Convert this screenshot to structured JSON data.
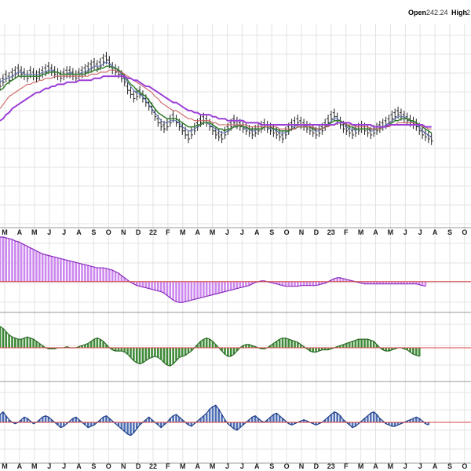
{
  "header": {
    "open_label": "Open",
    "open_value": "242.24",
    "high_label": "High",
    "high_value": "2"
  },
  "colors": {
    "grid": "#e3e3e3",
    "price_bars": "#222222",
    "ma_blue": "#5a6fb5",
    "ma_green": "#2f7d2a",
    "ma_red": "#c95757",
    "ma_purple": "#9b3fd6",
    "osc1_fill": "#cc88ee",
    "osc1_line": "#8a2bbd",
    "osc2_fill": "#3f8a38",
    "osc2_line": "#2b6a25",
    "osc3_fill": "#4e6fb5",
    "osc3_line": "#1f3f86",
    "zero_line": "#d84040"
  },
  "chart_data": [
    {
      "type": "line",
      "panel": "price",
      "x_ticks": [
        "M",
        "A",
        "M",
        "J",
        "J",
        "A",
        "S",
        "O",
        "N",
        "D",
        "22",
        "F",
        "M",
        "A",
        "M",
        "J",
        "J",
        "A",
        "S",
        "O",
        "N",
        "D",
        "23",
        "F",
        "M",
        "A",
        "M",
        "J",
        "J",
        "A",
        "S",
        "O"
      ],
      "x_range": [
        0,
        155
      ],
      "ylim": [
        0,
        100
      ],
      "series": [
        {
          "key": "price",
          "values": [
            70,
            72,
            74,
            73,
            75,
            76,
            77,
            76,
            75,
            74,
            76,
            75,
            74,
            75,
            76,
            77,
            78,
            77,
            76,
            75,
            74,
            75,
            76,
            76,
            75,
            74,
            75,
            76,
            77,
            78,
            79,
            80,
            79,
            80,
            82,
            83,
            81,
            78,
            77,
            76,
            74,
            72,
            68,
            66,
            64,
            65,
            66,
            64,
            62,
            60,
            58,
            55,
            52,
            50,
            49,
            50,
            52,
            54,
            52,
            50,
            48,
            46,
            44,
            46,
            48,
            50,
            52,
            53,
            52,
            50,
            48,
            46,
            45,
            44,
            46,
            48,
            50,
            52,
            51,
            50,
            49,
            48,
            47,
            46,
            47,
            48,
            49,
            50,
            49,
            48,
            47,
            46,
            45,
            44,
            46,
            48,
            50,
            51,
            52,
            51,
            50,
            49,
            48,
            47,
            46,
            47,
            48,
            50,
            52,
            54,
            55,
            53,
            51,
            49,
            48,
            47,
            46,
            47,
            48,
            49,
            48,
            47,
            46,
            47,
            48,
            49,
            50,
            51,
            52,
            54,
            55,
            56,
            55,
            54,
            53,
            52,
            51,
            50,
            48,
            46,
            45,
            44,
            43
          ]
        },
        {
          "key": "ma_blue",
          "values": [
            71,
            72,
            73,
            73,
            74,
            75,
            76,
            76,
            75,
            75,
            75,
            75,
            75,
            75,
            76,
            76,
            77,
            77,
            76,
            76,
            75,
            75,
            75,
            76,
            75,
            75,
            75,
            76,
            76,
            77,
            78,
            79,
            79,
            79,
            80,
            81,
            80,
            79,
            78,
            77,
            75,
            73,
            71,
            69,
            67,
            66,
            65,
            64,
            62,
            60,
            58,
            56,
            54,
            52,
            51,
            51,
            52,
            52,
            52,
            51,
            49,
            48,
            47,
            47,
            48,
            49,
            50,
            51,
            51,
            50,
            49,
            48,
            47,
            46,
            46,
            47,
            48,
            49,
            50,
            50,
            49,
            48,
            48,
            47,
            47,
            48,
            48,
            49,
            49,
            48,
            48,
            47,
            46,
            46,
            46,
            47,
            48,
            49,
            50,
            50,
            50,
            49,
            49,
            48,
            47,
            47,
            48,
            49,
            50,
            52,
            53,
            53,
            52,
            51,
            49,
            48,
            48,
            47,
            48,
            48,
            48,
            48,
            47,
            47,
            48,
            48,
            49,
            50,
            51,
            52,
            53,
            54,
            54,
            54,
            53,
            52,
            51,
            50,
            49,
            47,
            46,
            45,
            44
          ]
        },
        {
          "key": "ma_green",
          "values": [
            67,
            68,
            70,
            71,
            72,
            73,
            74,
            74,
            74,
            74,
            74,
            74,
            74,
            74,
            75,
            75,
            76,
            76,
            76,
            76,
            75,
            75,
            75,
            75,
            75,
            75,
            75,
            75,
            75,
            76,
            76,
            77,
            77,
            78,
            78,
            79,
            79,
            78,
            78,
            77,
            76,
            74,
            72,
            70,
            69,
            67,
            66,
            65,
            64,
            62,
            60,
            58,
            56,
            55,
            54,
            53,
            53,
            53,
            53,
            52,
            51,
            50,
            49,
            49,
            49,
            50,
            50,
            51,
            51,
            51,
            50,
            49,
            48,
            48,
            47,
            48,
            48,
            49,
            49,
            50,
            49,
            49,
            48,
            48,
            48,
            48,
            48,
            49,
            49,
            49,
            48,
            48,
            47,
            47,
            47,
            47,
            48,
            48,
            49,
            49,
            49,
            49,
            49,
            48,
            48,
            48,
            48,
            49,
            50,
            51,
            52,
            52,
            52,
            51,
            50,
            49,
            49,
            48,
            48,
            48,
            48,
            48,
            48,
            48,
            48,
            48,
            49,
            49,
            50,
            51,
            52,
            52,
            53,
            53,
            53,
            52,
            52,
            51,
            50,
            49,
            48,
            47,
            46
          ]
        },
        {
          "key": "ma_red",
          "values": [
            58,
            60,
            62,
            64,
            65,
            66,
            67,
            68,
            69,
            70,
            70,
            71,
            71,
            72,
            72,
            73,
            73,
            73,
            74,
            74,
            74,
            74,
            74,
            74,
            74,
            74,
            74,
            74,
            74,
            74,
            75,
            75,
            75,
            76,
            76,
            76,
            77,
            77,
            77,
            76,
            76,
            75,
            74,
            73,
            72,
            71,
            70,
            69,
            68,
            67,
            66,
            64,
            63,
            61,
            60,
            59,
            58,
            57,
            57,
            56,
            55,
            54,
            53,
            53,
            52,
            52,
            52,
            52,
            52,
            52,
            51,
            51,
            50,
            50,
            50,
            50,
            50,
            50,
            50,
            50,
            50,
            50,
            49,
            49,
            49,
            49,
            49,
            49,
            49,
            49,
            49,
            49,
            48,
            48,
            48,
            48,
            48,
            48,
            49,
            49,
            49,
            49,
            49,
            49,
            48,
            48,
            48,
            49,
            49,
            50,
            50,
            51,
            51,
            51,
            50,
            50,
            50,
            49,
            49,
            49,
            49,
            49,
            48,
            48,
            48,
            48,
            49,
            49,
            49,
            50,
            50,
            51,
            51,
            51,
            51,
            51,
            51,
            50,
            50,
            49,
            49,
            48,
            48
          ]
        },
        {
          "key": "ma_purple",
          "values": [
            52,
            53,
            55,
            56,
            58,
            59,
            60,
            61,
            62,
            63,
            64,
            65,
            66,
            66,
            67,
            68,
            68,
            69,
            69,
            70,
            70,
            70,
            71,
            71,
            71,
            71,
            72,
            72,
            72,
            72,
            72,
            73,
            73,
            73,
            74,
            74,
            74,
            74,
            74,
            74,
            74,
            74,
            73,
            73,
            72,
            72,
            71,
            70,
            69,
            69,
            68,
            67,
            66,
            65,
            64,
            63,
            62,
            61,
            61,
            60,
            59,
            58,
            57,
            57,
            56,
            56,
            55,
            55,
            55,
            55,
            54,
            54,
            53,
            53,
            53,
            52,
            52,
            52,
            52,
            52,
            52,
            51,
            51,
            51,
            51,
            51,
            50,
            50,
            50,
            50,
            50,
            50,
            50,
            50,
            50,
            50,
            50,
            50,
            50,
            50,
            50,
            50,
            50,
            50,
            50,
            50,
            50,
            50,
            50,
            50,
            50,
            51,
            51,
            51,
            51,
            51,
            50,
            50,
            50,
            50,
            50,
            50,
            50,
            49,
            49,
            49,
            49,
            49,
            50,
            50,
            50,
            50,
            50,
            50,
            50,
            50,
            50,
            50,
            50,
            50,
            49,
            49,
            49
          ]
        }
      ]
    },
    {
      "type": "area",
      "panel": "oscillator-1",
      "ylim": [
        -40,
        60
      ],
      "values": [
        58,
        58,
        57,
        56,
        55,
        53,
        52,
        50,
        48,
        46,
        44,
        42,
        40,
        38,
        36,
        35,
        34,
        33,
        32,
        31,
        30,
        29,
        28,
        27,
        26,
        25,
        24,
        23,
        22,
        21,
        20,
        19,
        18,
        18,
        18,
        17,
        16,
        15,
        13,
        11,
        8,
        5,
        2,
        -1,
        -3,
        -5,
        -6,
        -7,
        -8,
        -9,
        -10,
        -11,
        -12,
        -13,
        -15,
        -18,
        -21,
        -24,
        -26,
        -27,
        -27,
        -26,
        -25,
        -24,
        -23,
        -22,
        -21,
        -20,
        -19,
        -18,
        -17,
        -16,
        -15,
        -14,
        -13,
        -12,
        -11,
        -10,
        -9,
        -8,
        -7,
        -6,
        -5,
        -3,
        -1,
        0,
        1,
        1,
        0,
        -1,
        -2,
        -3,
        -4,
        -5,
        -6,
        -6,
        -6,
        -6,
        -6,
        -5,
        -5,
        -5,
        -5,
        -5,
        -5,
        -4,
        -3,
        -2,
        0,
        2,
        4,
        5,
        5,
        4,
        3,
        2,
        1,
        0,
        -1,
        -2,
        -3,
        -3,
        -3,
        -3,
        -3,
        -3,
        -3,
        -3,
        -3,
        -3,
        -3,
        -3,
        -3,
        -3,
        -3,
        -3,
        -3,
        -3,
        -4,
        -5,
        -6
      ]
    },
    {
      "type": "area",
      "panel": "oscillator-2",
      "ylim": [
        -30,
        30
      ],
      "values": [
        20,
        18,
        15,
        12,
        10,
        9,
        8,
        8,
        9,
        10,
        9,
        8,
        6,
        4,
        2,
        0,
        -1,
        -1,
        -1,
        0,
        0,
        0,
        1,
        0,
        0,
        0,
        1,
        2,
        3,
        4,
        6,
        8,
        9,
        8,
        6,
        3,
        0,
        -2,
        -3,
        -3,
        -3,
        -4,
        -6,
        -9,
        -12,
        -14,
        -15,
        -14,
        -12,
        -10,
        -9,
        -8,
        -9,
        -11,
        -14,
        -16,
        -17,
        -15,
        -12,
        -9,
        -8,
        -7,
        -5,
        -3,
        0,
        3,
        6,
        8,
        9,
        8,
        6,
        3,
        0,
        -3,
        -6,
        -8,
        -8,
        -6,
        -3,
        0,
        2,
        3,
        3,
        2,
        1,
        0,
        -1,
        -1,
        0,
        2,
        4,
        6,
        8,
        9,
        9,
        8,
        7,
        6,
        5,
        3,
        1,
        -1,
        -3,
        -4,
        -4,
        -3,
        -2,
        -2,
        -2,
        -1,
        0,
        1,
        2,
        3,
        4,
        5,
        6,
        7,
        8,
        8,
        8,
        8,
        7,
        6,
        3,
        0,
        -2,
        -3,
        -3,
        -2,
        -1,
        0,
        0,
        -1,
        -2,
        -4,
        -6,
        -7,
        -8
      ]
    },
    {
      "type": "area",
      "panel": "oscillator-3",
      "ylim": [
        -30,
        30
      ],
      "values": [
        6,
        8,
        5,
        2,
        0,
        -1,
        0,
        2,
        4,
        3,
        1,
        -1,
        0,
        2,
        4,
        5,
        4,
        2,
        0,
        -2,
        -4,
        -3,
        -1,
        1,
        3,
        4,
        2,
        0,
        -2,
        -4,
        -3,
        -2,
        0,
        2,
        4,
        5,
        3,
        1,
        -1,
        -3,
        -5,
        -7,
        -9,
        -10,
        -8,
        -5,
        -2,
        0,
        2,
        4,
        2,
        0,
        -2,
        -4,
        -2,
        0,
        3,
        5,
        6,
        4,
        2,
        0,
        -2,
        -3,
        -1,
        1,
        3,
        5,
        7,
        10,
        12,
        13,
        10,
        6,
        2,
        -1,
        -3,
        -5,
        -6,
        -4,
        -2,
        0,
        2,
        4,
        5,
        3,
        1,
        0,
        2,
        4,
        6,
        7,
        5,
        3,
        1,
        -1,
        -2,
        -1,
        0,
        1,
        2,
        1,
        0,
        -1,
        -2,
        -1,
        0,
        2,
        4,
        6,
        8,
        7,
        5,
        2,
        0,
        -2,
        -4,
        -3,
        -1,
        1,
        3,
        5,
        7,
        8,
        6,
        3,
        1,
        -1,
        -2,
        -3,
        -3,
        -2,
        -1,
        0,
        1,
        2,
        3,
        4,
        3,
        1,
        -1,
        -2
      ]
    }
  ]
}
